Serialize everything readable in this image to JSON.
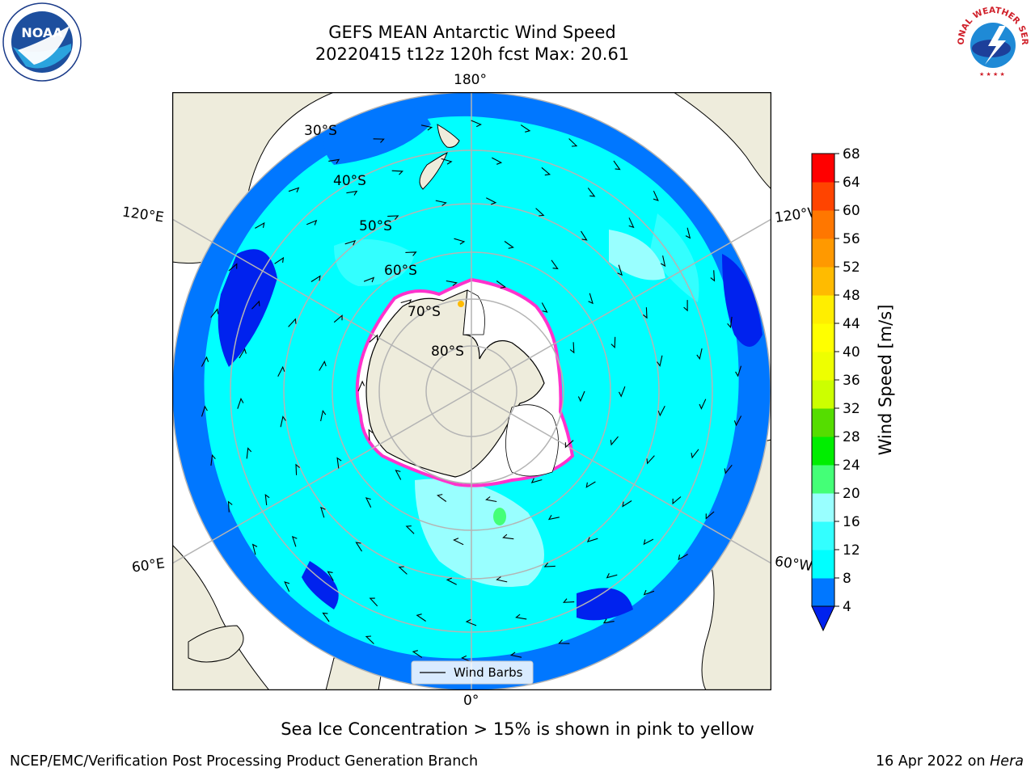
{
  "title": {
    "line1": "GEFS MEAN Antarctic Wind Speed",
    "line2": "20220415 t12z 120h fcst   Max: 20.61"
  },
  "logos": {
    "left": {
      "icon": "noaa-logo",
      "text": "NOAA",
      "ring_text": "NATIONAL OCEANIC AND ATMOSPHERIC ADMINISTRATION · U.S. DEPARTMENT OF COMMERCE"
    },
    "right": {
      "icon": "nws-logo",
      "ring_text": "NATIONAL WEATHER SERVICE"
    }
  },
  "map": {
    "projection": "south-polar-stereographic",
    "meridian_labels": {
      "top": "180°",
      "bottom": "0°",
      "upper_left": "120°E",
      "lower_left": "60°E",
      "upper_right": "120°W",
      "lower_right": "60°W"
    },
    "latitude_labels": [
      "30°S",
      "40°S",
      "50°S",
      "60°S",
      "70°S",
      "80°S"
    ],
    "legend": {
      "label": "Wind Barbs"
    },
    "colors": {
      "land": "#eeecdc",
      "ice_edge": "#ff33cc",
      "grid": "#b4b4b4"
    },
    "fields": {
      "dominant_speed_range": "8-12 m/s",
      "max_speed": 20.61
    }
  },
  "colorbar": {
    "label": "Wind Speed [m/s]",
    "ticks": [
      "4",
      "8",
      "12",
      "16",
      "20",
      "24",
      "28",
      "32",
      "36",
      "40",
      "44",
      "48",
      "52",
      "56",
      "60",
      "64",
      "68"
    ],
    "colors": [
      "#0077ff",
      "#00ffff",
      "#33ffff",
      "#99ffff",
      "#44ff77",
      "#00ee00",
      "#55dd00",
      "#ccff00",
      "#eeff00",
      "#ffff00",
      "#ffee00",
      "#ffbb00",
      "#ff9900",
      "#ff7700",
      "#ff4400",
      "#ff0000"
    ],
    "extend_color": "#0022ee"
  },
  "notes": {
    "ice": "Sea Ice Concentration > 15% is shown in pink to yellow"
  },
  "footer": {
    "left": "NCEP/EMC/Verification Post Processing Product Generation Branch",
    "right_date": "16 Apr 2022 on",
    "right_machine": "Hera"
  }
}
